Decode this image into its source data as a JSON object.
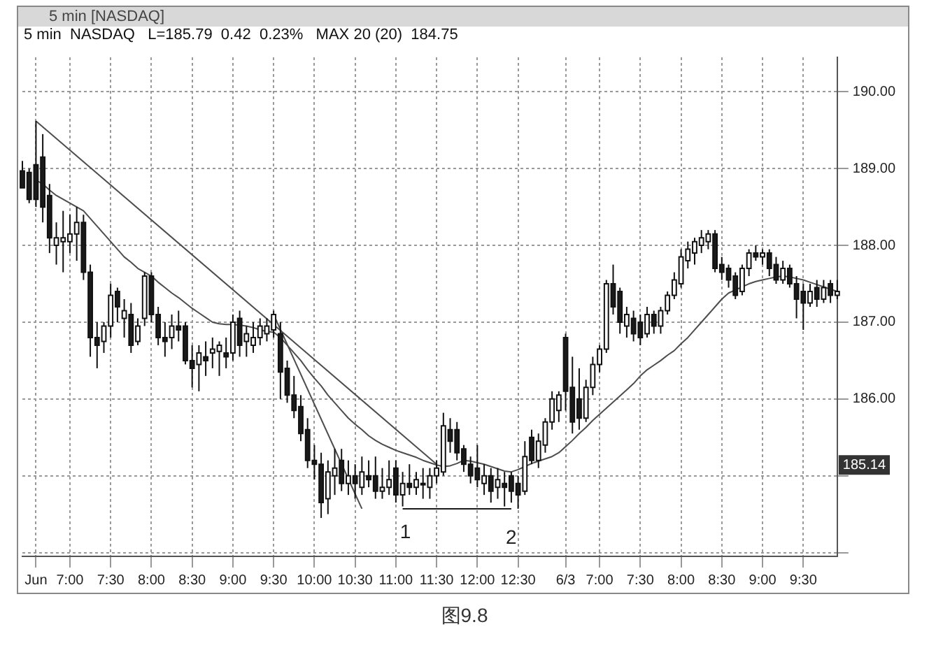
{
  "chart_data": {
    "type": "candlestick",
    "title": "5 min [NASDAQ]",
    "subtitle": "5 min  NASDAQ   L=185.79  0.42  0.23%   MAX 20 (20)  184.75",
    "categories": [
      null,
      null,
      "Jun",
      null,
      null,
      null,
      null,
      "7:00",
      null,
      null,
      null,
      null,
      null,
      "7:30",
      null,
      null,
      null,
      null,
      null,
      "8:00",
      null,
      null,
      null,
      null,
      null,
      "8:30",
      null,
      null,
      null,
      null,
      null,
      "9:00",
      null,
      null,
      null,
      null,
      null,
      "9:30",
      null,
      null,
      null,
      null,
      null,
      "10:00",
      null,
      null,
      null,
      null,
      null,
      "10:30",
      null,
      null,
      null,
      null,
      null,
      "11:00",
      null,
      null,
      null,
      null,
      null,
      "11:30",
      null,
      null,
      null,
      null,
      null,
      "12:00",
      null,
      null,
      null,
      null,
      null,
      "12:30",
      null,
      null,
      null,
      null,
      null,
      null,
      "6/3",
      null,
      null,
      null,
      null,
      "7:00",
      null,
      null,
      null,
      null,
      null,
      "7:30",
      null,
      null,
      null,
      null,
      null,
      "8:00",
      null,
      null,
      null,
      null,
      null,
      "8:30",
      null,
      null,
      null,
      null,
      null,
      "9:00",
      null,
      null,
      null,
      null,
      null,
      "9:30",
      null,
      null,
      null,
      null,
      null
    ],
    "ohlc": [
      [
        188.97,
        189.1,
        188.75,
        188.75
      ],
      [
        188.95,
        189.0,
        188.55,
        188.6
      ],
      [
        189.05,
        189.62,
        188.5,
        188.6
      ],
      [
        189.15,
        189.45,
        188.3,
        188.5
      ],
      [
        188.65,
        188.8,
        187.9,
        188.1
      ],
      [
        188.0,
        188.3,
        187.75,
        188.1
      ],
      [
        188.05,
        188.45,
        187.65,
        188.1
      ],
      [
        188.05,
        188.4,
        187.9,
        188.15
      ],
      [
        188.15,
        188.5,
        187.8,
        188.3
      ],
      [
        188.3,
        188.4,
        187.55,
        187.65
      ],
      [
        187.65,
        187.75,
        186.55,
        186.8
      ],
      [
        186.8,
        187.0,
        186.4,
        186.7
      ],
      [
        186.75,
        187.0,
        186.6,
        186.95
      ],
      [
        186.95,
        187.5,
        186.8,
        187.35
      ],
      [
        187.4,
        187.45,
        187.0,
        187.2
      ],
      [
        187.05,
        187.3,
        186.8,
        187.15
      ],
      [
        187.1,
        187.25,
        186.6,
        186.7
      ],
      [
        186.75,
        187.05,
        186.7,
        186.95
      ],
      [
        187.05,
        187.65,
        186.95,
        187.6
      ],
      [
        187.6,
        187.65,
        187.0,
        187.1
      ],
      [
        187.1,
        187.2,
        186.7,
        186.8
      ],
      [
        186.8,
        187.0,
        186.55,
        186.75
      ],
      [
        186.8,
        187.1,
        186.65,
        186.95
      ],
      [
        186.95,
        187.15,
        186.75,
        186.9
      ],
      [
        186.95,
        187.0,
        186.45,
        186.5
      ],
      [
        186.5,
        186.7,
        186.15,
        186.4
      ],
      [
        186.45,
        186.7,
        186.1,
        186.6
      ],
      [
        186.55,
        186.75,
        186.3,
        186.5
      ],
      [
        186.6,
        186.8,
        186.4,
        186.65
      ],
      [
        186.62,
        186.75,
        186.3,
        186.7
      ],
      [
        186.6,
        186.8,
        186.4,
        186.55
      ],
      [
        186.6,
        187.1,
        186.5,
        187.0
      ],
      [
        187.05,
        187.15,
        186.55,
        186.7
      ],
      [
        186.75,
        186.95,
        186.55,
        186.85
      ],
      [
        186.7,
        187.0,
        186.6,
        186.8
      ],
      [
        186.8,
        187.05,
        186.7,
        186.95
      ],
      [
        186.85,
        187.05,
        186.75,
        186.95
      ],
      [
        186.9,
        187.15,
        186.8,
        187.1
      ],
      [
        186.85,
        187.0,
        186.0,
        186.35
      ],
      [
        186.4,
        186.5,
        185.95,
        186.05
      ],
      [
        186.05,
        186.3,
        185.75,
        185.85
      ],
      [
        185.9,
        186.05,
        185.45,
        185.55
      ],
      [
        185.6,
        185.75,
        185.1,
        185.2
      ],
      [
        185.2,
        185.4,
        184.95,
        185.15
      ],
      [
        185.15,
        185.3,
        184.45,
        184.65
      ],
      [
        184.7,
        185.2,
        184.5,
        185.05
      ],
      [
        185.0,
        185.35,
        184.75,
        185.1
      ],
      [
        185.2,
        185.35,
        184.8,
        184.9
      ],
      [
        184.9,
        185.2,
        184.75,
        185.0
      ],
      [
        185.0,
        185.15,
        184.7,
        184.9
      ],
      [
        184.85,
        185.25,
        184.75,
        185.05
      ],
      [
        185.0,
        185.2,
        184.85,
        184.95
      ],
      [
        185.0,
        185.25,
        184.7,
        184.8
      ],
      [
        184.8,
        185.1,
        184.7,
        184.85
      ],
      [
        184.85,
        185.2,
        184.75,
        184.95
      ],
      [
        185.1,
        185.2,
        184.65,
        184.75
      ],
      [
        184.75,
        185.05,
        184.6,
        184.9
      ],
      [
        184.9,
        185.15,
        184.75,
        184.85
      ],
      [
        184.85,
        185.05,
        184.75,
        184.95
      ],
      [
        184.9,
        185.1,
        184.7,
        184.9
      ],
      [
        184.85,
        185.1,
        184.7,
        185.0
      ],
      [
        185.0,
        185.2,
        184.9,
        185.1
      ],
      [
        185.05,
        185.82,
        185.0,
        185.65
      ],
      [
        185.6,
        185.75,
        185.3,
        185.45
      ],
      [
        185.6,
        185.7,
        185.2,
        185.3
      ],
      [
        185.35,
        185.4,
        185.05,
        185.15
      ],
      [
        185.15,
        185.25,
        184.9,
        185.0
      ],
      [
        185.1,
        185.4,
        184.85,
        184.95
      ],
      [
        184.9,
        185.15,
        184.75,
        185.0
      ],
      [
        185.0,
        185.1,
        184.65,
        184.8
      ],
      [
        184.85,
        185.1,
        184.7,
        184.95
      ],
      [
        184.9,
        185.05,
        184.6,
        184.85
      ],
      [
        185.0,
        185.05,
        184.65,
        184.8
      ],
      [
        184.9,
        185.0,
        184.57,
        184.75
      ],
      [
        184.8,
        185.45,
        184.75,
        185.25
      ],
      [
        185.5,
        185.6,
        185.15,
        185.2
      ],
      [
        185.2,
        185.55,
        185.1,
        185.45
      ],
      [
        185.4,
        185.75,
        185.3,
        185.7
      ],
      [
        185.7,
        186.1,
        185.6,
        186.0
      ],
      [
        185.85,
        186.1,
        185.7,
        186.05
      ],
      [
        186.8,
        186.85,
        185.85,
        186.1
      ],
      [
        186.15,
        186.55,
        185.55,
        185.7
      ],
      [
        186.0,
        186.4,
        185.6,
        185.75
      ],
      [
        185.75,
        186.25,
        185.7,
        186.15
      ],
      [
        186.15,
        186.55,
        186.05,
        186.45
      ],
      [
        186.45,
        186.7,
        186.35,
        186.65
      ],
      [
        186.65,
        187.55,
        186.6,
        187.5
      ],
      [
        187.5,
        187.75,
        187.1,
        187.2
      ],
      [
        187.4,
        187.45,
        186.85,
        187.0
      ],
      [
        186.95,
        187.2,
        186.8,
        187.1
      ],
      [
        187.05,
        187.15,
        186.75,
        186.85
      ],
      [
        187.0,
        187.1,
        186.7,
        186.8
      ],
      [
        186.85,
        187.2,
        186.8,
        187.1
      ],
      [
        187.1,
        187.15,
        186.85,
        186.95
      ],
      [
        186.95,
        187.2,
        186.85,
        187.15
      ],
      [
        187.15,
        187.4,
        187.1,
        187.35
      ],
      [
        187.35,
        187.65,
        187.3,
        187.55
      ],
      [
        187.5,
        187.95,
        187.45,
        187.85
      ],
      [
        187.8,
        188.05,
        187.7,
        187.95
      ],
      [
        187.9,
        188.1,
        187.75,
        188.05
      ],
      [
        188.0,
        188.2,
        187.9,
        188.1
      ],
      [
        188.05,
        188.2,
        187.95,
        188.15
      ],
      [
        188.15,
        188.2,
        187.65,
        187.7
      ],
      [
        187.75,
        187.85,
        187.55,
        187.65
      ],
      [
        187.7,
        187.75,
        187.45,
        187.55
      ],
      [
        187.6,
        187.65,
        187.3,
        187.35
      ],
      [
        187.4,
        187.75,
        187.35,
        187.7
      ],
      [
        187.7,
        187.95,
        187.6,
        187.9
      ],
      [
        187.9,
        188.0,
        187.8,
        187.85
      ],
      [
        187.85,
        187.95,
        187.75,
        187.9
      ],
      [
        187.9,
        187.95,
        187.6,
        187.7
      ],
      [
        187.75,
        187.85,
        187.5,
        187.55
      ],
      [
        187.55,
        187.8,
        187.5,
        187.7
      ],
      [
        187.7,
        187.75,
        187.45,
        187.5
      ],
      [
        187.5,
        187.6,
        187.05,
        187.3
      ],
      [
        187.4,
        187.5,
        186.9,
        187.25
      ],
      [
        187.25,
        187.5,
        187.2,
        187.4
      ],
      [
        187.45,
        187.55,
        187.2,
        187.3
      ],
      [
        187.3,
        187.55,
        187.25,
        187.45
      ],
      [
        187.5,
        187.55,
        187.25,
        187.35
      ],
      [
        187.35,
        187.55,
        187.3,
        187.4
      ]
    ],
    "series": [
      {
        "type": "line",
        "color": "#4d4d4d",
        "values": [
          null,
          null,
          188.85,
          188.8,
          188.72,
          188.65,
          188.6,
          188.55,
          188.5,
          188.45,
          188.35,
          188.25,
          188.15,
          188.05,
          187.95,
          187.85,
          187.78,
          187.7,
          187.65,
          187.6,
          187.52,
          187.45,
          187.38,
          187.32,
          187.25,
          187.18,
          187.12,
          187.06,
          187.0,
          186.98,
          186.97,
          186.97,
          186.96,
          186.95,
          186.93,
          186.9,
          186.88,
          186.87,
          186.8,
          186.7,
          186.6,
          186.5,
          186.38,
          186.27,
          186.17,
          186.05,
          185.95,
          185.85,
          185.75,
          185.67,
          185.6,
          185.52,
          185.46,
          185.41,
          185.37,
          185.33,
          185.3,
          185.27,
          185.24,
          185.2,
          185.17,
          185.14,
          185.12,
          185.13,
          185.16,
          185.2,
          185.19,
          185.17,
          185.15,
          185.12,
          185.09,
          185.06,
          185.05,
          185.08,
          185.12,
          185.16,
          185.19,
          185.22,
          185.25,
          185.3,
          185.38,
          185.46,
          185.55,
          185.63,
          185.72,
          185.8,
          185.88,
          185.96,
          186.04,
          186.12,
          186.2,
          186.3,
          186.38,
          186.44,
          186.5,
          186.57,
          186.63,
          186.72,
          186.8,
          186.9,
          187.0,
          187.1,
          187.2,
          187.3,
          187.38,
          187.42,
          187.46,
          187.5,
          187.53,
          187.55,
          187.57,
          187.59,
          187.6,
          187.59,
          187.57,
          187.55,
          187.52,
          187.49,
          187.46,
          187.43,
          187.4
        ]
      },
      {
        "type": "line",
        "color": "#4d4d4d",
        "values": [
          null,
          null,
          189.62,
          null,
          null,
          null,
          null,
          null,
          null,
          null,
          null,
          null,
          null,
          null,
          null,
          null,
          null,
          null,
          null,
          null,
          null,
          null,
          null,
          null,
          null,
          null,
          null,
          null,
          null,
          null,
          null,
          null,
          null,
          null,
          null,
          null,
          null,
          null,
          null,
          null,
          null,
          null,
          null,
          null,
          null,
          null,
          null,
          null,
          null,
          null,
          null,
          null,
          null,
          null,
          null,
          null,
          null,
          null,
          null,
          null,
          null,
          185.15,
          null,
          null,
          null,
          null,
          null,
          null,
          null,
          null,
          null,
          null,
          null,
          null,
          null,
          null,
          null,
          null,
          null,
          null,
          null,
          null,
          null,
          null,
          null,
          null,
          null,
          null,
          null,
          null,
          null,
          null,
          null,
          null,
          null,
          null,
          null,
          null,
          null,
          null,
          null,
          null,
          null,
          null,
          null,
          null,
          null,
          null,
          null,
          null,
          null,
          null,
          null,
          null,
          null,
          null,
          null,
          null,
          null,
          null,
          null
        ]
      },
      {
        "type": "line",
        "color": "#4d4d4d",
        "values": [
          null,
          null,
          null,
          null,
          null,
          null,
          null,
          null,
          null,
          null,
          null,
          null,
          null,
          null,
          null,
          null,
          null,
          null,
          null,
          null,
          null,
          null,
          null,
          null,
          null,
          null,
          null,
          null,
          null,
          null,
          null,
          null,
          null,
          null,
          null,
          null,
          null,
          187.1,
          null,
          null,
          null,
          null,
          null,
          null,
          null,
          null,
          null,
          null,
          null,
          null,
          184.57,
          null,
          null,
          null,
          null,
          null,
          null,
          null,
          null,
          null,
          null,
          null,
          null,
          null,
          null,
          null,
          null,
          null,
          null,
          null,
          null,
          null,
          null,
          null,
          null,
          null,
          null,
          null,
          null,
          null,
          null,
          null,
          null,
          null,
          null,
          null,
          null,
          null,
          null,
          null,
          null,
          null,
          null,
          null,
          null,
          null,
          null,
          null,
          null,
          null,
          null,
          null,
          null,
          null,
          null,
          null,
          null,
          null,
          null,
          null,
          null,
          null,
          null,
          null,
          null,
          null,
          null,
          null,
          null,
          null,
          null
        ]
      },
      {
        "type": "line",
        "color": "#1a1a1a",
        "values": [
          null,
          null,
          null,
          null,
          null,
          null,
          null,
          null,
          null,
          null,
          null,
          null,
          null,
          null,
          null,
          null,
          null,
          null,
          null,
          null,
          null,
          null,
          null,
          null,
          null,
          null,
          null,
          null,
          null,
          null,
          null,
          null,
          null,
          null,
          null,
          null,
          null,
          null,
          null,
          null,
          null,
          null,
          null,
          null,
          null,
          null,
          null,
          null,
          null,
          null,
          null,
          null,
          null,
          null,
          null,
          null,
          184.57,
          null,
          null,
          null,
          null,
          null,
          null,
          null,
          null,
          null,
          null,
          null,
          null,
          null,
          null,
          null,
          184.57,
          null,
          null,
          null,
          null,
          null,
          null,
          null,
          null,
          null,
          null,
          null,
          null,
          null,
          null,
          null,
          null,
          null,
          null,
          null,
          null,
          null,
          null,
          null,
          null,
          null,
          null,
          null,
          null,
          null,
          null,
          null,
          null,
          null,
          null,
          null,
          null,
          null,
          null,
          null,
          null,
          null,
          null,
          null,
          null,
          null,
          null,
          null,
          null
        ]
      }
    ],
    "ylim": [
      183.95,
      190.45
    ],
    "yticks": [
      {
        "value": 184,
        "label": null
      },
      {
        "value": 185,
        "label": null
      },
      {
        "value": 186,
        "label": "186.00"
      },
      {
        "value": 187,
        "label": "187.00"
      },
      {
        "value": 188,
        "label": "188.00"
      },
      {
        "value": 189,
        "label": "189.00"
      },
      {
        "value": 190,
        "label": "190.00"
      }
    ],
    "grid": true,
    "legend": false,
    "annotations": [
      "1",
      "2",
      {
        "text": "185.14",
        "y": 185.14
      },
      "图9.8"
    ]
  }
}
